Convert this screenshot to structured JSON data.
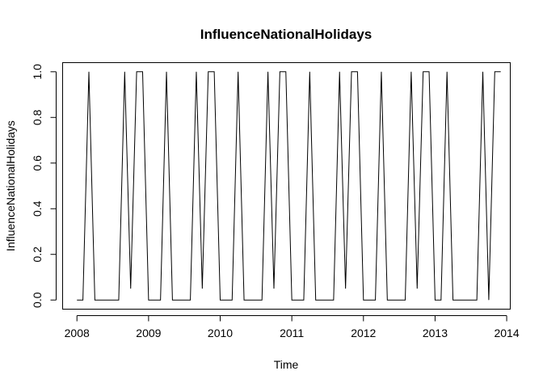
{
  "chart_data": {
    "type": "line",
    "title": "InfluenceNationalHolidays",
    "xlabel": "Time",
    "ylabel": "InfluenceNationalHolidays",
    "xlim": [
      2007.8,
      2014.05
    ],
    "ylim": [
      -0.04,
      1.04
    ],
    "x_ticks": [
      "2008",
      "2009",
      "2010",
      "2011",
      "2012",
      "2013",
      "2014"
    ],
    "x_tick_values": [
      2008,
      2009,
      2010,
      2011,
      2012,
      2013,
      2014
    ],
    "y_ticks": [
      "0.0",
      "0.2",
      "0.4",
      "0.6",
      "0.8",
      "1.0"
    ],
    "y_tick_values": [
      0.0,
      0.2,
      0.4,
      0.6,
      0.8,
      1.0
    ],
    "grid": false,
    "line_color": "#000000",
    "series": [
      {
        "x": [
          2008.0,
          2008.0833,
          2008.1667,
          2008.25,
          2008.3333,
          2008.4167,
          2008.5,
          2008.5833,
          2008.6667,
          2008.75,
          2008.8333,
          2008.9167,
          2009.0,
          2009.0833,
          2009.1667,
          2009.25,
          2009.3333,
          2009.4167,
          2009.5,
          2009.5833,
          2009.6667,
          2009.75,
          2009.8333,
          2009.9167,
          2010.0,
          2010.0833,
          2010.1667,
          2010.25,
          2010.3333,
          2010.4167,
          2010.5,
          2010.5833,
          2010.6667,
          2010.75,
          2010.8333,
          2010.9167,
          2011.0,
          2011.0833,
          2011.1667,
          2011.25,
          2011.3333,
          2011.4167,
          2011.5,
          2011.5833,
          2011.6667,
          2011.75,
          2011.8333,
          2011.9167,
          2012.0,
          2012.0833,
          2012.1667,
          2012.25,
          2012.3333,
          2012.4167,
          2012.5,
          2012.5833,
          2012.6667,
          2012.75,
          2012.8333,
          2012.9167,
          2013.0,
          2013.0833,
          2013.1667,
          2013.25,
          2013.3333,
          2013.4167,
          2013.5,
          2013.5833,
          2013.6667,
          2013.75,
          2013.8333,
          2013.9167
        ],
        "y": [
          0,
          0,
          1,
          0,
          0,
          0,
          0,
          0,
          1,
          0.05,
          1,
          1,
          0,
          0,
          0,
          1,
          0,
          0,
          0,
          0,
          1,
          0.05,
          1,
          1,
          0,
          0,
          0,
          1,
          0,
          0,
          0,
          0,
          1,
          0.05,
          1,
          1,
          0,
          0,
          0,
          1,
          0,
          0,
          0,
          0,
          1,
          0.05,
          1,
          1,
          0,
          0,
          0,
          1,
          0,
          0,
          0,
          0,
          1,
          0.05,
          1,
          1,
          0,
          0,
          1,
          0,
          0,
          0,
          0,
          0,
          1,
          0,
          1,
          1
        ]
      }
    ]
  }
}
